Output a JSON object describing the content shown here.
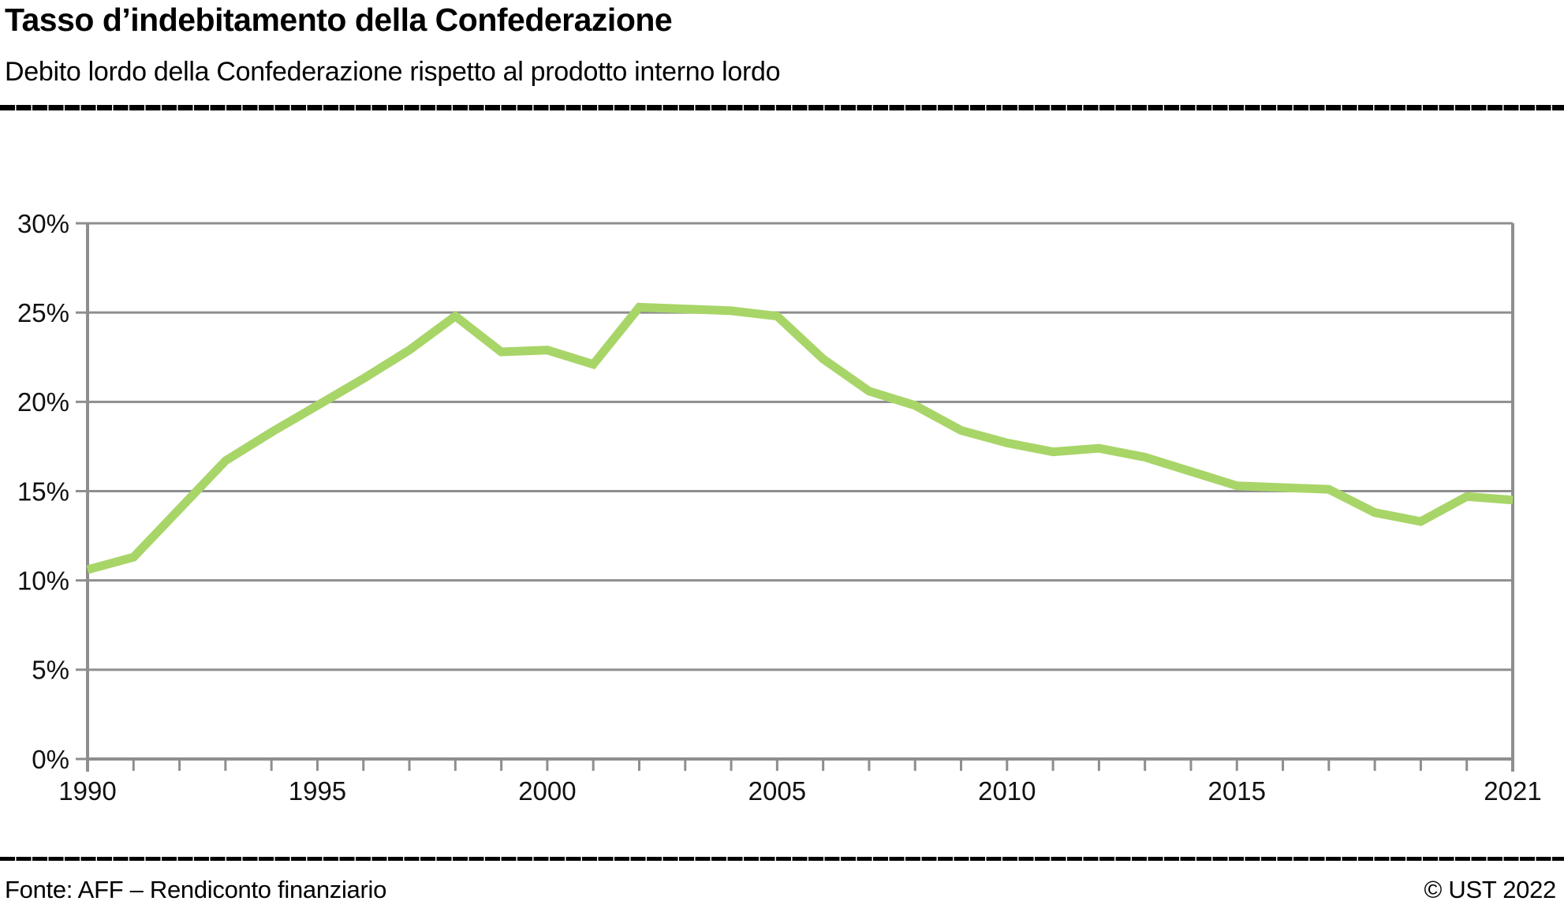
{
  "header": {
    "title": "Tasso d’indebitamento della Confederazione",
    "subtitle": "Debito lordo della Confederazione rispetto al prodotto interno lordo"
  },
  "footer": {
    "source": "Fonte: AFF – Rendiconto finanziario",
    "copyright": "© UST 2022"
  },
  "colors": {
    "line": "#a8d568",
    "grid": "#8e8e8e",
    "axis": "#8e8e8e",
    "text": "#111111"
  },
  "chart_data": {
    "type": "line",
    "title": "Tasso d’indebitamento della Confederazione",
    "subtitle": "Debito lordo della Confederazione rispetto al prodotto interno lordo",
    "unit": "%",
    "x": [
      1990,
      1991,
      1992,
      1993,
      1994,
      1995,
      1996,
      1997,
      1998,
      1999,
      2000,
      2001,
      2002,
      2003,
      2004,
      2005,
      2006,
      2007,
      2008,
      2009,
      2010,
      2011,
      2012,
      2013,
      2014,
      2015,
      2016,
      2017,
      2018,
      2019,
      2020,
      2021
    ],
    "values": [
      10.6,
      11.3,
      14.0,
      16.7,
      18.3,
      19.8,
      21.3,
      22.9,
      24.8,
      22.8,
      22.9,
      22.1,
      25.3,
      25.2,
      25.1,
      24.8,
      22.4,
      20.6,
      19.8,
      18.4,
      17.7,
      17.2,
      17.4,
      16.9,
      16.1,
      15.3,
      15.2,
      15.1,
      13.8,
      13.3,
      14.7,
      14.5
    ],
    "ylim": [
      0,
      30
    ],
    "ytick_step": 5,
    "ytick_labels": [
      "0%",
      "5%",
      "10%",
      "15%",
      "20%",
      "25%",
      "30%"
    ],
    "xticks": [
      {
        "x": 1990,
        "label": "1990"
      },
      {
        "x": 1995,
        "label": "1995"
      },
      {
        "x": 2000,
        "label": "2000"
      },
      {
        "x": 2005,
        "label": "2005"
      },
      {
        "x": 2010,
        "label": "2010"
      },
      {
        "x": 2015,
        "label": "2015"
      },
      {
        "x": 2021,
        "label": "2021"
      }
    ],
    "grid": "horizontal",
    "legend": "none"
  }
}
